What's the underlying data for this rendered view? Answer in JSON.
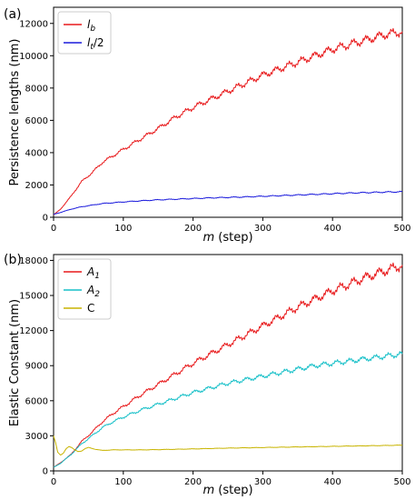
{
  "chart_data": [
    {
      "type": "line",
      "panel_label": "(a)",
      "xlabel_var": "m",
      "xlabel_rest": " (step)",
      "ylabel": "Persistence lengths (nm)",
      "xlim": [
        0,
        500
      ],
      "ylim": [
        0,
        13000
      ],
      "xticks": [
        0,
        100,
        200,
        300,
        400,
        500
      ],
      "yticks": [
        0,
        2000,
        4000,
        6000,
        8000,
        10000,
        12000
      ],
      "grid": false,
      "legend_position": "top-left",
      "series": [
        {
          "name": "l_b",
          "legend_main": "l",
          "legend_sub": "b",
          "legend_suffix": "",
          "color": "#e8191b",
          "x": [
            0,
            10,
            25,
            40,
            55,
            70,
            85,
            100,
            125,
            150,
            175,
            200,
            225,
            250,
            275,
            300,
            325,
            350,
            375,
            400,
            425,
            450,
            475,
            500
          ],
          "y": [
            150,
            500,
            1300,
            2200,
            2750,
            3400,
            3800,
            4200,
            4850,
            5500,
            6200,
            6800,
            7300,
            7800,
            8300,
            8800,
            9200,
            9600,
            10000,
            10400,
            10700,
            11000,
            11300,
            11500
          ]
        },
        {
          "name": "l_t/2",
          "legend_main": "l",
          "legend_sub": "t",
          "legend_suffix": "/2",
          "color": "#1a1adc",
          "x": [
            0,
            10,
            25,
            40,
            55,
            70,
            85,
            100,
            125,
            150,
            175,
            200,
            225,
            250,
            275,
            300,
            325,
            350,
            375,
            400,
            425,
            450,
            475,
            500
          ],
          "y": [
            180,
            300,
            500,
            650,
            750,
            850,
            900,
            950,
            1020,
            1080,
            1120,
            1160,
            1200,
            1230,
            1260,
            1300,
            1340,
            1380,
            1420,
            1460,
            1500,
            1530,
            1560,
            1580
          ]
        }
      ]
    },
    {
      "type": "line",
      "panel_label": "(b)",
      "xlabel_var": "m",
      "xlabel_rest": " (step)",
      "ylabel": "Elastic Constant (nm)",
      "xlim": [
        0,
        500
      ],
      "ylim": [
        0,
        18500
      ],
      "xticks": [
        0,
        100,
        200,
        300,
        400,
        500
      ],
      "yticks": [
        0,
        3000,
        6000,
        9000,
        12000,
        15000,
        18000
      ],
      "grid": false,
      "legend_position": "top-left",
      "series": [
        {
          "name": "A_1",
          "legend_main": "A",
          "legend_sub": "1",
          "legend_suffix": "",
          "color": "#e8191b",
          "x": [
            0,
            10,
            25,
            40,
            55,
            70,
            85,
            100,
            125,
            150,
            175,
            200,
            225,
            250,
            275,
            300,
            325,
            350,
            375,
            400,
            425,
            450,
            475,
            500
          ],
          "y": [
            300,
            700,
            1400,
            2500,
            3300,
            4200,
            4900,
            5500,
            6500,
            7400,
            8300,
            9200,
            10000,
            10800,
            11600,
            12400,
            13200,
            14000,
            14700,
            15400,
            16000,
            16600,
            17100,
            17600
          ]
        },
        {
          "name": "A_2",
          "legend_main": "A",
          "legend_sub": "2",
          "legend_suffix": "",
          "color": "#17c0c8",
          "x": [
            0,
            10,
            25,
            40,
            55,
            70,
            85,
            100,
            125,
            150,
            175,
            200,
            225,
            250,
            275,
            300,
            325,
            350,
            375,
            400,
            425,
            450,
            475,
            500
          ],
          "y": [
            300,
            650,
            1400,
            2300,
            3000,
            3700,
            4200,
            4600,
            5200,
            5700,
            6200,
            6700,
            7100,
            7500,
            7800,
            8100,
            8400,
            8700,
            9000,
            9200,
            9400,
            9600,
            9800,
            10000
          ]
        },
        {
          "name": "C",
          "legend_main": "C",
          "legend_sub": "",
          "legend_suffix": "",
          "color": "#c8b400",
          "x": [
            0,
            3,
            6,
            10,
            14,
            18,
            22,
            26,
            30,
            35,
            40,
            45,
            50,
            60,
            70,
            85,
            100,
            125,
            150,
            175,
            200,
            250,
            300,
            350,
            400,
            450,
            500
          ],
          "y": [
            3000,
            2400,
            1600,
            1350,
            1500,
            1900,
            2100,
            2000,
            1800,
            1650,
            1700,
            1900,
            2000,
            1850,
            1750,
            1800,
            1800,
            1800,
            1820,
            1850,
            1880,
            1950,
            2000,
            2050,
            2100,
            2150,
            2200
          ]
        }
      ]
    }
  ]
}
